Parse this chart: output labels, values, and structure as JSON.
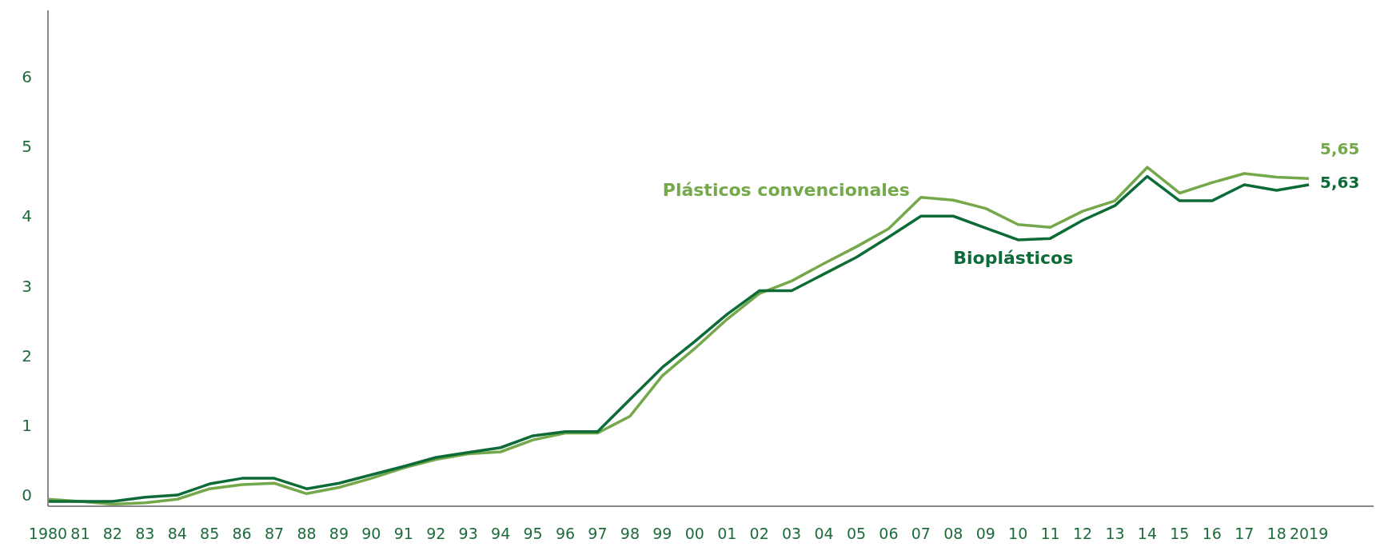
{
  "chart_data": {
    "type": "line",
    "categories": [
      "1980",
      "81",
      "82",
      "83",
      "84",
      "85",
      "86",
      "87",
      "88",
      "89",
      "90",
      "91",
      "92",
      "93",
      "94",
      "95",
      "96",
      "97",
      "98",
      "99",
      "00",
      "01",
      "02",
      "03",
      "04",
      "05",
      "06",
      "07",
      "08",
      "09",
      "10",
      "11",
      "12",
      "13",
      "14",
      "15",
      "16",
      "17",
      "18",
      "2019"
    ],
    "series": [
      {
        "name": "Plásticos convencionales",
        "color": "#74a84a",
        "values": [
          -0.06,
          -0.09,
          -0.13,
          -0.11,
          -0.06,
          0.09,
          0.15,
          0.17,
          0.02,
          0.11,
          0.24,
          0.39,
          0.51,
          0.59,
          0.62,
          0.79,
          0.89,
          0.89,
          1.13,
          1.71,
          2.1,
          2.52,
          2.89,
          3.07,
          3.32,
          3.56,
          3.82,
          4.27,
          4.23,
          4.11,
          3.88,
          3.84,
          4.07,
          4.22,
          4.7,
          4.33,
          4.48,
          4.61,
          4.56,
          4.54
        ]
      },
      {
        "name": "Bioplásticos",
        "color": "#0d6b38",
        "values": [
          -0.09,
          -0.09,
          -0.09,
          -0.03,
          0,
          0.16,
          0.24,
          0.24,
          0.09,
          0.17,
          0.29,
          0.41,
          0.54,
          0.61,
          0.68,
          0.85,
          0.91,
          0.91,
          1.37,
          1.83,
          2.2,
          2.59,
          2.93,
          2.93,
          3.17,
          3.41,
          3.7,
          4.0,
          4.0,
          3.83,
          3.66,
          3.68,
          3.94,
          4.15,
          4.57,
          4.22,
          4.22,
          4.45,
          4.37,
          4.45
        ]
      }
    ],
    "annotations": [
      "5,65",
      "5,63"
    ],
    "ylim": [
      -0.16,
      6.95
    ],
    "yticks": [
      0,
      1,
      2,
      3,
      4,
      5,
      6
    ],
    "grid": false,
    "legend": false,
    "marker": "none",
    "line_style": "solid"
  }
}
